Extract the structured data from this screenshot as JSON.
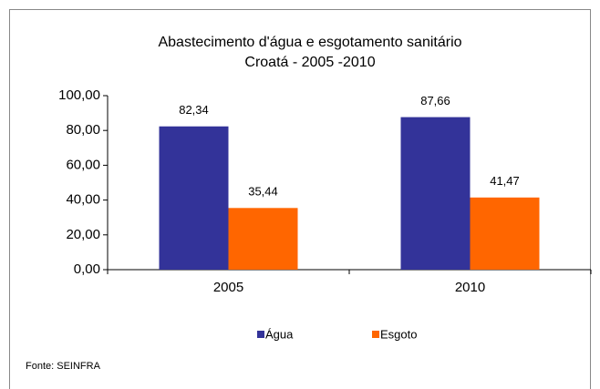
{
  "chart_data": {
    "type": "bar",
    "title": "Abastecimento d'água e esgotamento sanitário",
    "subtitle": "Croatá - 2005 -2010",
    "categories": [
      "2005",
      "2010"
    ],
    "series": [
      {
        "name": "Água",
        "color": "#333399",
        "values": [
          82.34,
          87.66
        ],
        "value_labels": [
          "82,34",
          "87,66"
        ]
      },
      {
        "name": "Esgoto",
        "color": "#ff6600",
        "values": [
          35.44,
          41.47
        ],
        "value_labels": [
          "35,44",
          "41,47"
        ]
      }
    ],
    "ylim": [
      0,
      100
    ],
    "yticks": [
      {
        "value": 0,
        "label": "0,00"
      },
      {
        "value": 20,
        "label": "20,00"
      },
      {
        "value": 40,
        "label": "40,00"
      },
      {
        "value": 60,
        "label": "60,00"
      },
      {
        "value": 80,
        "label": "80,00"
      },
      {
        "value": 100,
        "label": "100,00"
      }
    ],
    "legend": "bottom",
    "source": "Fonte: SEINFRA"
  }
}
